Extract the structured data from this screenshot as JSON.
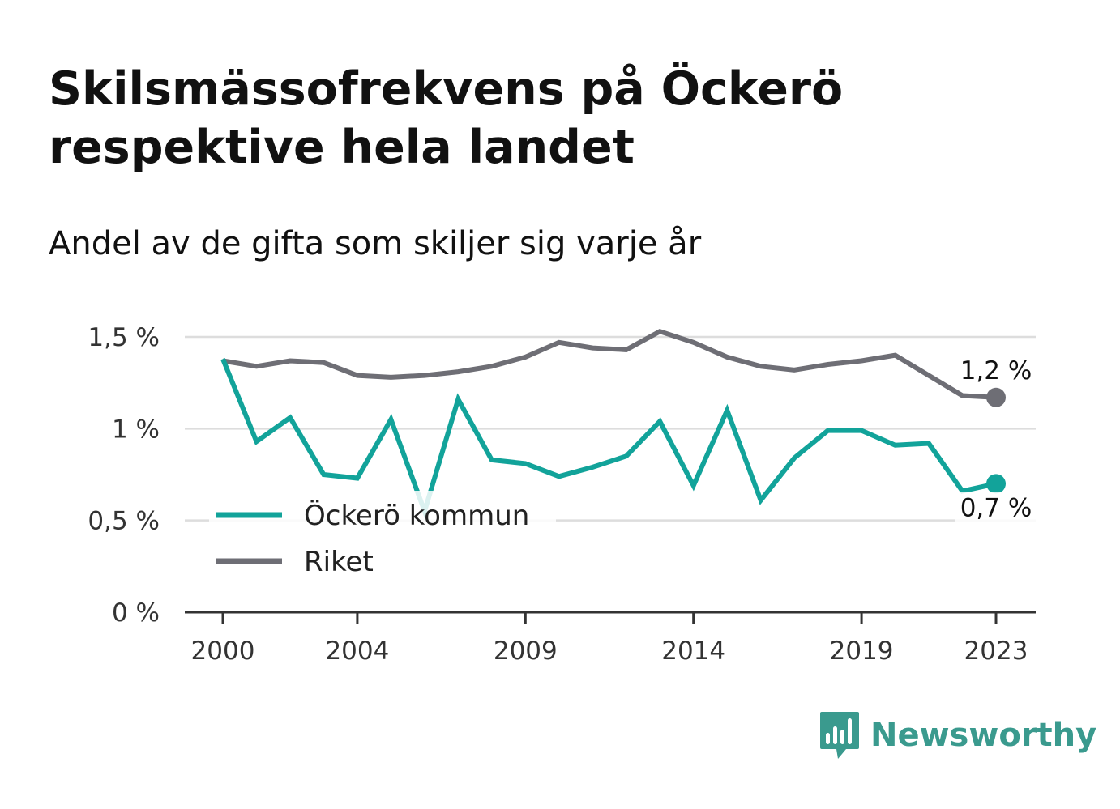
{
  "title": "Skilsmässofrekvens på Öckerö respektive hela landet",
  "subtitle": "Andel av de gifta som skiljer sig varje år",
  "brand": {
    "name": "Newsworthy",
    "icon": "bar-chart-speech-bubble-icon",
    "color": "#3a9a8e"
  },
  "chart_data": {
    "type": "line",
    "title": "Skilsmässofrekvens på Öckerö respektive hela landet",
    "subtitle": "Andel av de gifta som skiljer sig varje år",
    "xlabel": "",
    "ylabel": "",
    "x": [
      2000,
      2001,
      2002,
      2003,
      2004,
      2005,
      2006,
      2007,
      2008,
      2009,
      2010,
      2011,
      2012,
      2013,
      2014,
      2015,
      2016,
      2017,
      2018,
      2019,
      2020,
      2021,
      2022,
      2023
    ],
    "x_ticks": [
      2000,
      2004,
      2009,
      2014,
      2019,
      2023
    ],
    "x_tick_labels": [
      "2000",
      "2004",
      "2009",
      "2014",
      "2019",
      "2023"
    ],
    "ylim": [
      0,
      1.5
    ],
    "y_ticks": [
      0,
      0.5,
      1,
      1.5
    ],
    "y_tick_labels": [
      "0 %",
      "0,5 %",
      "1 %",
      "1,5 %"
    ],
    "grid": true,
    "legend_position": "bottom-left",
    "series": [
      {
        "name": "Öckerö kommun",
        "color": "#12a39a",
        "values": [
          1.38,
          0.93,
          1.06,
          0.75,
          0.73,
          1.05,
          0.55,
          1.16,
          0.83,
          0.81,
          0.74,
          0.79,
          0.85,
          1.04,
          0.69,
          1.1,
          0.61,
          0.84,
          0.99,
          0.99,
          0.91,
          0.92,
          0.66,
          0.7
        ],
        "end_label": "0,7 %"
      },
      {
        "name": "Riket",
        "color": "#6e6e75",
        "values": [
          1.37,
          1.34,
          1.37,
          1.36,
          1.29,
          1.28,
          1.29,
          1.31,
          1.34,
          1.39,
          1.47,
          1.44,
          1.43,
          1.53,
          1.47,
          1.39,
          1.34,
          1.32,
          1.35,
          1.37,
          1.4,
          1.29,
          1.18,
          1.17
        ],
        "end_label": "1,2 %"
      }
    ]
  }
}
